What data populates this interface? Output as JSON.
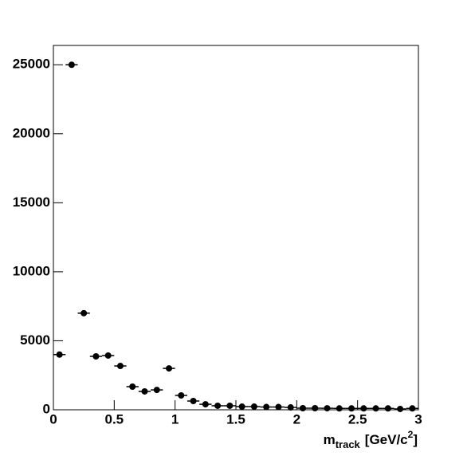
{
  "chart_data": {
    "type": "histogram",
    "bins": [
      0,
      0.1,
      0.2,
      0.3,
      0.4,
      0.5,
      0.6,
      0.7,
      0.8,
      0.9,
      1.0,
      1.1,
      1.2,
      1.3,
      1.4,
      1.5,
      1.6,
      1.7,
      1.8,
      1.9,
      2.0,
      2.1,
      2.2,
      2.3,
      2.4,
      2.5,
      2.6,
      2.7,
      2.8,
      2.9,
      3.0
    ],
    "values": [
      4000,
      25000,
      7000,
      3870,
      3930,
      3175,
      1675,
      1330,
      1440,
      3000,
      1040,
      635,
      400,
      290,
      290,
      230,
      230,
      200,
      200,
      170,
      115,
      115,
      110,
      100,
      100,
      100,
      100,
      100,
      60,
      100
    ],
    "color": "#000000",
    "xlabel": [
      "m",
      "track",
      "[GeV/c",
      "2",
      "]"
    ],
    "xlim": [
      0,
      3
    ],
    "xticks": [
      0,
      0.5,
      1,
      1.5,
      2,
      2.5,
      3
    ],
    "ylim": [
      0,
      26400
    ],
    "yticks": [
      0,
      5000,
      10000,
      15000,
      20000,
      25000
    ]
  }
}
